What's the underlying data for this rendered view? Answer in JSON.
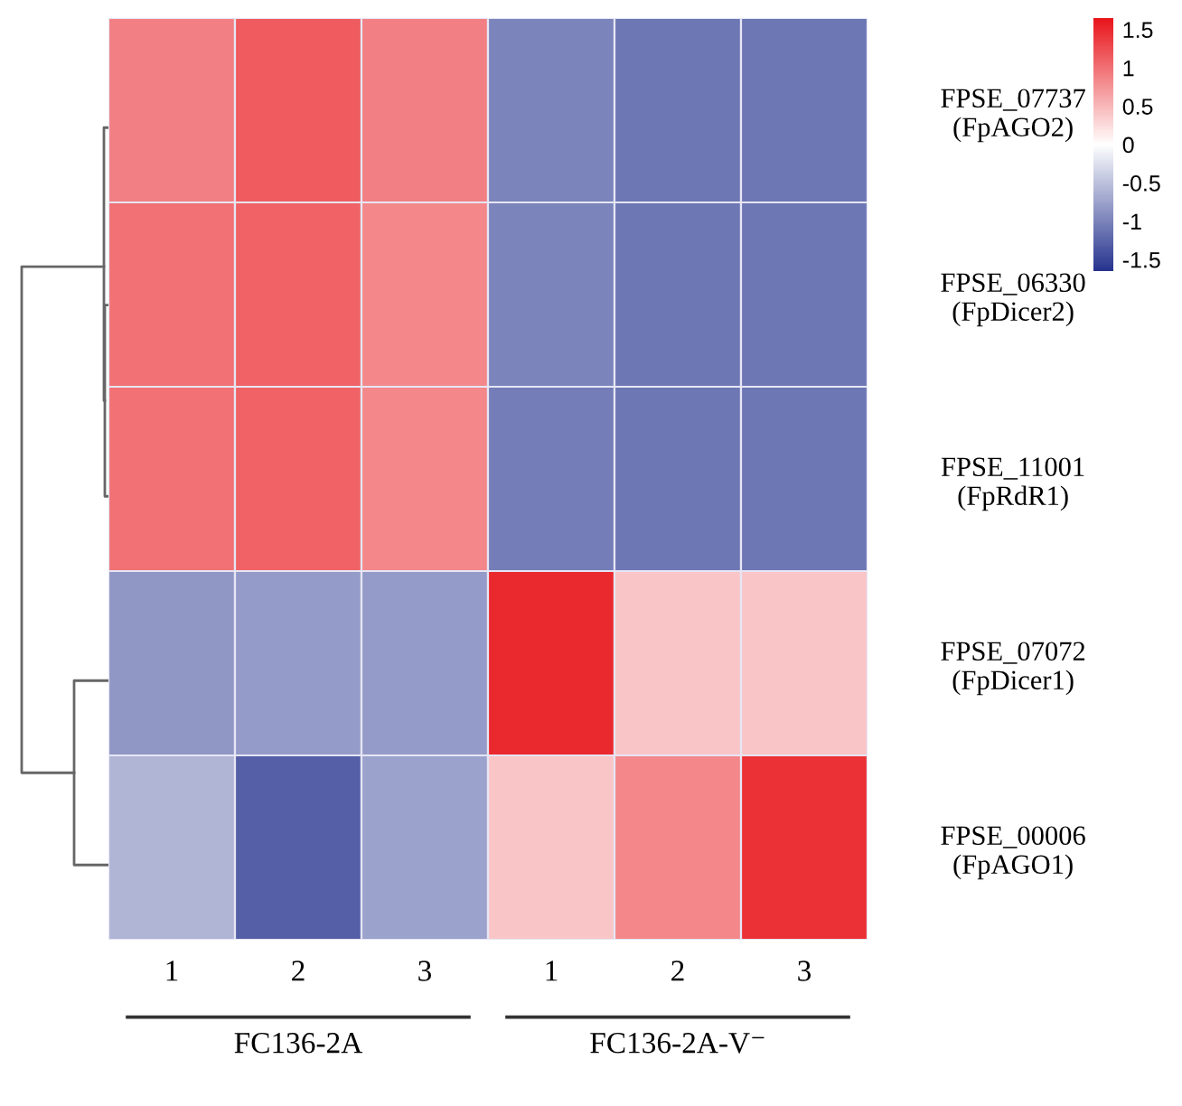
{
  "chart_data": {
    "type": "heatmap",
    "categories": [
      "1",
      "2",
      "3",
      "1",
      "2",
      "3"
    ],
    "y_categories": [
      "FPSE_07737\n(FpAGO2)",
      "FPSE_06330\n(FpDicer2)",
      "FPSE_11001\n(FpRdR1)",
      "FPSE_07072\n(FpDicer1)",
      "FPSE_00006\n(FpAGO1)"
    ],
    "cells": [
      [
        0.9,
        1.15,
        0.9,
        -1.0,
        -1.1,
        -1.1
      ],
      [
        1.0,
        1.1,
        0.85,
        -1.0,
        -1.1,
        -1.1
      ],
      [
        1.0,
        1.1,
        0.85,
        -1.05,
        -1.1,
        -1.1
      ],
      [
        -0.85,
        -0.8,
        -0.8,
        1.5,
        0.4,
        0.4
      ],
      [
        -0.6,
        -1.3,
        -0.75,
        0.4,
        0.85,
        1.45
      ]
    ],
    "clim": [
      -1.65,
      1.65
    ],
    "cticks": [
      1.5,
      1,
      0.5,
      0,
      -0.5,
      -1,
      -1.5
    ],
    "annotations": [
      "FC136-2A",
      "FC136-2A-V⁻"
    ]
  }
}
